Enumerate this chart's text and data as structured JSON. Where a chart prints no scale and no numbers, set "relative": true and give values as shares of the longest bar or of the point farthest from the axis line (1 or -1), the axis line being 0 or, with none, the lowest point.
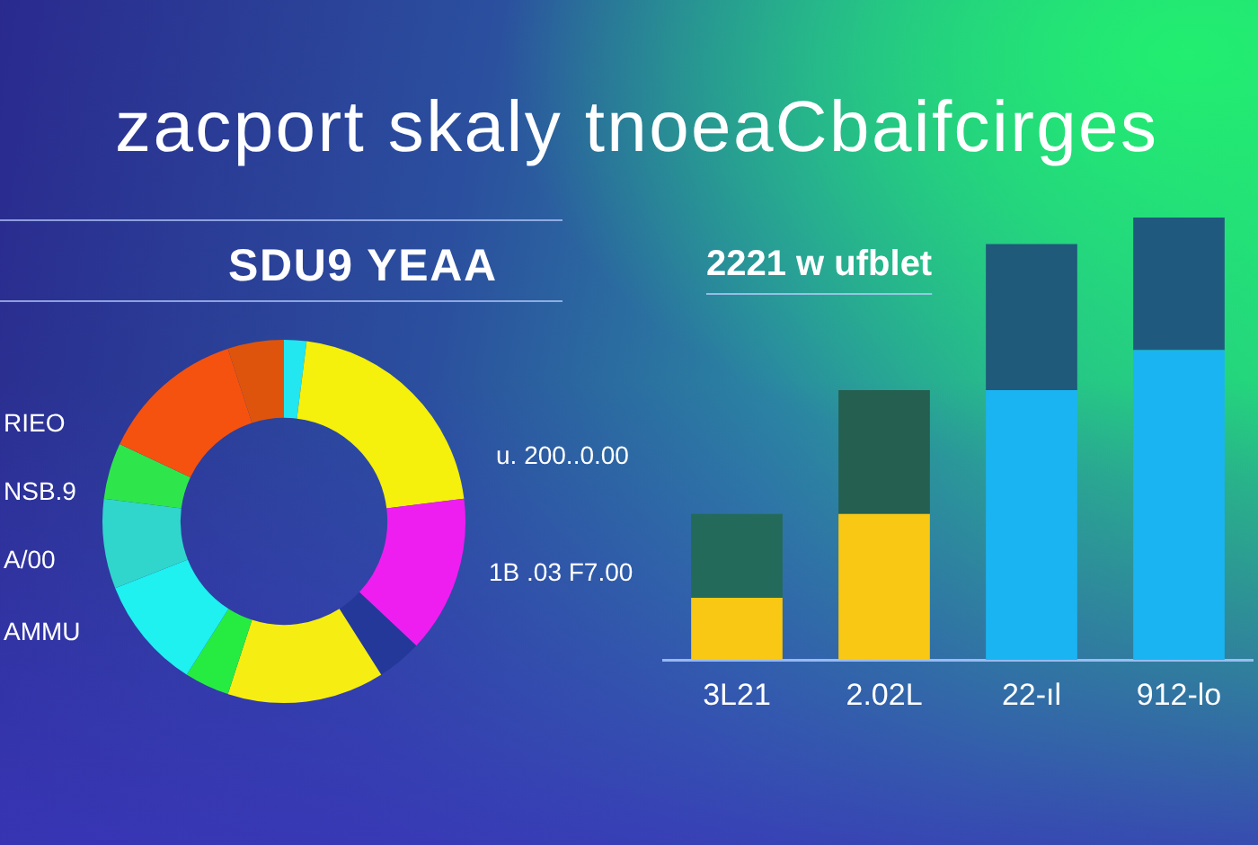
{
  "chart_data": [
    {
      "type": "donut",
      "title": "zacport skaly tnoeaCbaifcirges",
      "subtitle": "SDU9 YEAA",
      "categories": [
        null,
        null,
        null,
        null,
        null,
        null,
        null,
        null,
        null,
        null,
        null
      ],
      "values": [
        2,
        21,
        14,
        4,
        14,
        4,
        10,
        8,
        5,
        13,
        5
      ],
      "colors": [
        "#22e6f0",
        "#f5f00c",
        "#ee1ef0",
        "#24389a",
        "#f6ee12",
        "#26ec42",
        "#1ff0f0",
        "#30d6cc",
        "#2ee64c",
        "#f5520f",
        "#de540c"
      ],
      "annotations": [
        "RIEO",
        "NSB.9",
        "A/00",
        "AMMU",
        "u. 200..0.00",
        "1B .03 F7.00"
      ]
    },
    {
      "type": "bar",
      "title": "2221 w ufblet",
      "categories": [
        "3L21",
        "2.02L",
        "22-ıl",
        "912-lo"
      ],
      "stacked": true,
      "relative": true,
      "series": [
        {
          "colors": [
            "#f8c814",
            "#f8c814",
            "#1bb4f2",
            "#1bb4f2"
          ],
          "values": [
            0.14,
            0.33,
            0.61,
            0.7
          ]
        },
        {
          "colors": [
            "#246a5a",
            "#245f50",
            "#1f5a7a",
            "#1f5a7e"
          ],
          "values": [
            0.19,
            0.28,
            0.33,
            0.3
          ]
        }
      ]
    }
  ]
}
